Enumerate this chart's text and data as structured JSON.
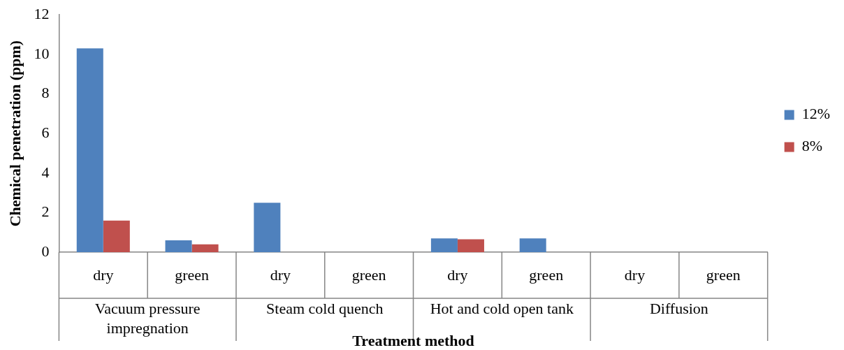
{
  "chart_data": {
    "type": "bar",
    "categories": [
      "dry",
      "green",
      "dry",
      "green",
      "dry",
      "green",
      "dry",
      "green"
    ],
    "annotations": [
      "Vacuum pressure impregnation",
      "Steam cold quench",
      "Hot and cold open tank",
      "Diffusion"
    ],
    "series": [
      {
        "name": "12%",
        "color": "#4f81bd",
        "values": [
          10.3,
          0.6,
          2.5,
          0,
          0.7,
          0.7,
          0,
          0
        ]
      },
      {
        "name": "8%",
        "color": "#c0504d",
        "values": [
          1.6,
          0.4,
          0,
          0,
          0.65,
          0,
          0,
          0
        ]
      }
    ],
    "xlabel": "Treatment method",
    "ylabel": "Chemical penetration (ppm)",
    "ylim": [
      0,
      12
    ],
    "yticks": [
      0,
      2,
      4,
      6,
      8,
      10,
      12
    ],
    "grid": false,
    "legend": "right"
  }
}
